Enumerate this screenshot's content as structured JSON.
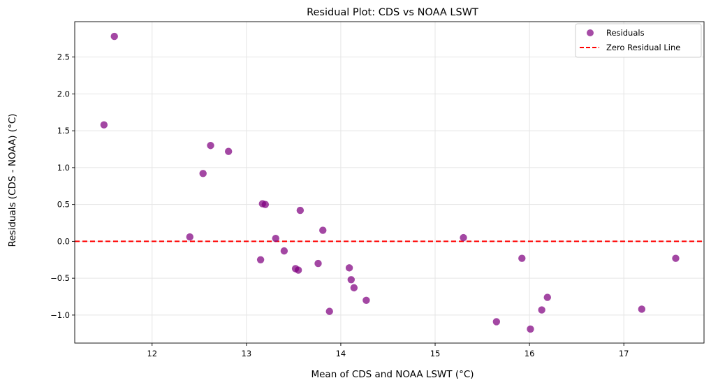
{
  "chart_data": {
    "type": "scatter",
    "title": "Residual Plot: CDS vs NOAA LSWT",
    "xlabel": "Mean of CDS and NOAA LSWT (°C)",
    "ylabel": "Residuals (CDS - NOAA) (°C)",
    "xlim": [
      11.18,
      17.85
    ],
    "ylim": [
      -1.38,
      2.98
    ],
    "xticks": [
      12,
      13,
      14,
      15,
      16,
      17
    ],
    "yticks": [
      -1.0,
      -0.5,
      0.0,
      0.5,
      1.0,
      1.5,
      2.0,
      2.5
    ],
    "xtick_labels": [
      "12",
      "13",
      "14",
      "15",
      "16",
      "17"
    ],
    "ytick_labels": [
      "−1.0",
      "−0.5",
      "0.0",
      "0.5",
      "1.0",
      "1.5",
      "2.0",
      "2.5"
    ],
    "grid": true,
    "legend_position": "top-right",
    "series": [
      {
        "name": "Residuals",
        "color": "#800080",
        "x": [
          11.6,
          11.49,
          12.62,
          12.81,
          12.54,
          12.4,
          13.17,
          13.2,
          13.57,
          13.81,
          13.31,
          13.4,
          13.15,
          13.52,
          13.55,
          13.76,
          13.88,
          14.09,
          14.11,
          14.14,
          14.27,
          15.3,
          15.65,
          15.92,
          16.01,
          16.13,
          16.19,
          17.19,
          17.55
        ],
        "y": [
          2.78,
          1.58,
          1.3,
          1.22,
          0.92,
          0.06,
          0.51,
          0.5,
          0.42,
          0.15,
          0.04,
          -0.13,
          -0.25,
          -0.37,
          -0.39,
          -0.3,
          -0.95,
          -0.36,
          -0.52,
          -0.63,
          -0.8,
          0.05,
          -1.09,
          -0.23,
          -1.19,
          -0.93,
          -0.76,
          -0.92,
          -0.23
        ]
      }
    ],
    "reference_line": {
      "name": "Zero Residual Line",
      "y": 0,
      "color": "#ff0000",
      "style": "dashed"
    }
  }
}
